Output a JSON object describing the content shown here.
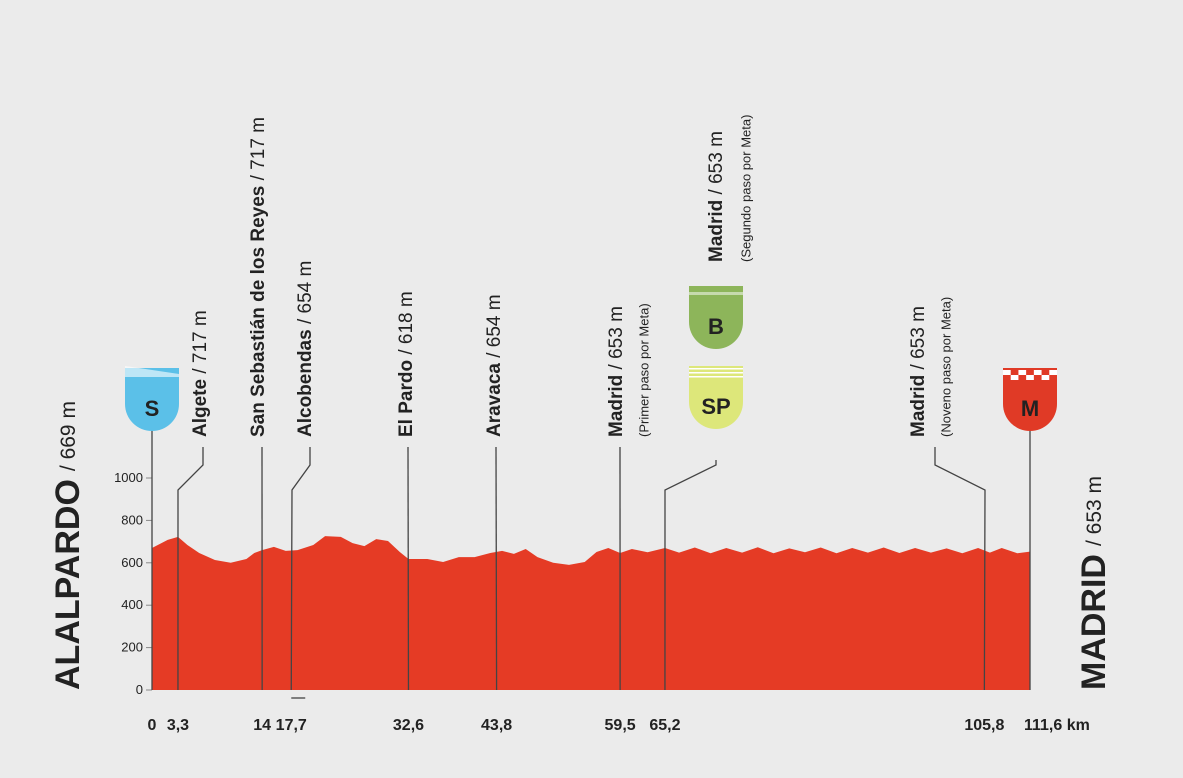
{
  "chart_data": {
    "type": "area",
    "color": "#e53b25",
    "x": [
      0,
      2,
      3.3,
      4.5,
      6,
      8,
      10,
      12,
      13,
      14,
      15.5,
      17,
      18.5,
      20.5,
      22,
      24,
      25.5,
      27,
      28.5,
      30,
      31.5,
      32.6,
      35,
      37,
      39,
      41,
      43,
      44.5,
      46,
      47.5,
      49,
      51,
      53,
      55,
      56.5,
      58,
      59.5,
      61,
      63,
      65.2,
      67,
      69,
      71,
      73,
      75,
      77,
      79,
      81,
      83,
      85,
      87,
      89,
      91,
      93,
      95,
      97,
      99,
      101,
      103,
      105,
      106.5,
      108,
      110,
      111.6
    ],
    "values": [
      670,
      708,
      722,
      684,
      646,
      613,
      600,
      618,
      646,
      660,
      675,
      656,
      660,
      684,
      726,
      722,
      693,
      679,
      712,
      703,
      651,
      618,
      618,
      604,
      627,
      627,
      646,
      656,
      642,
      665,
      627,
      600,
      590,
      604,
      651,
      670,
      646,
      665,
      650,
      670,
      648,
      672,
      645,
      670,
      648,
      673,
      645,
      668,
      650,
      672,
      645,
      670,
      648,
      672,
      646,
      670,
      648,
      668,
      645,
      670,
      648,
      670,
      645,
      653
    ],
    "xlim": [
      0,
      111.6
    ],
    "ylim": [
      0,
      1000
    ],
    "yticks": [
      0,
      200,
      400,
      600,
      800,
      1000
    ],
    "xticks": [
      0,
      {
        "value": 3.3,
        "label": "3,3"
      },
      14,
      {
        "value": 17.7,
        "label": "17,7"
      },
      {
        "value": 32.6,
        "label": "32,6"
      },
      {
        "value": 43.8,
        "label": "43,8"
      },
      {
        "value": 59.5,
        "label": "59,5"
      },
      {
        "value": 65.2,
        "label": "65,2"
      },
      {
        "value": 105.8,
        "label": "105,8"
      },
      {
        "value": 111.6,
        "label": "111,6 km"
      }
    ],
    "start": {
      "name": "ALALPARDO",
      "alt": "/ 669 m"
    },
    "finish": {
      "name": "MADRID",
      "alt": "/ 653 m"
    },
    "waypoints": [
      {
        "name": "Algete",
        "alt": " / 717 m"
      },
      {
        "name": "San Sebastián de los Reyes",
        "alt": " / 717 m"
      },
      {
        "name": "Alcobendas",
        "alt": " / 654 m"
      },
      {
        "name": "El Pardo",
        "alt": " / 618 m"
      },
      {
        "name": "Aravaca",
        "alt": " / 654 m"
      },
      {
        "name": "Madrid",
        "alt": " / 653 m",
        "note": "(Primer paso por Meta)"
      },
      {
        "name": "Madrid",
        "alt": " / 653 m",
        "note": "(Segundo paso por Meta)"
      },
      {
        "name": "Madrid",
        "alt": " / 653 m",
        "note": "(Noveno paso por Meta)"
      }
    ],
    "icons": [
      {
        "label": "S",
        "color": "#5bc0e8"
      },
      {
        "label": "B",
        "color": "#8db55a"
      },
      {
        "label": "SP",
        "color": "#dde77a"
      },
      {
        "label": "M",
        "color": "#e03a26"
      }
    ]
  }
}
